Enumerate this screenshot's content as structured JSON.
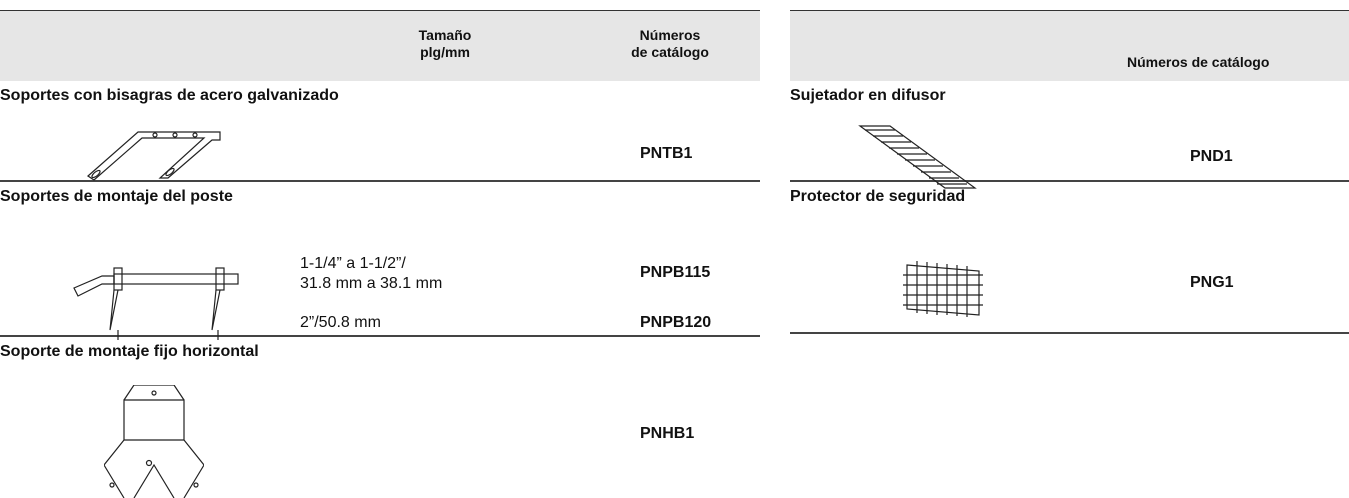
{
  "left_table": {
    "headers": [
      [
        "Tamaño",
        "plg/mm"
      ],
      [
        "Números",
        "de catálogo"
      ]
    ],
    "sections": [
      {
        "title": "Soportes con bisagras de acero galvanizado",
        "rows": [
          {
            "size": [],
            "catalog": "PNTB1"
          }
        ]
      },
      {
        "title": "Soportes de montaje del poste",
        "rows": [
          {
            "size": [
              "1-1/4” a 1-1/2”/",
              "31.8 mm a 38.1 mm"
            ],
            "catalog": "PNPB115"
          },
          {
            "size": [
              "2”/50.8 mm"
            ],
            "catalog": "PNPB120"
          }
        ]
      },
      {
        "title": "Soporte de montaje fijo horizontal",
        "rows": [
          {
            "size": [],
            "catalog": "PNHB1"
          }
        ]
      }
    ]
  },
  "right_table": {
    "header": "Números de catálogo",
    "sections": [
      {
        "title": "Sujetador en difusor",
        "catalog": "PND1"
      },
      {
        "title": "Protector de seguridad",
        "catalog": "PNG1"
      }
    ]
  }
}
